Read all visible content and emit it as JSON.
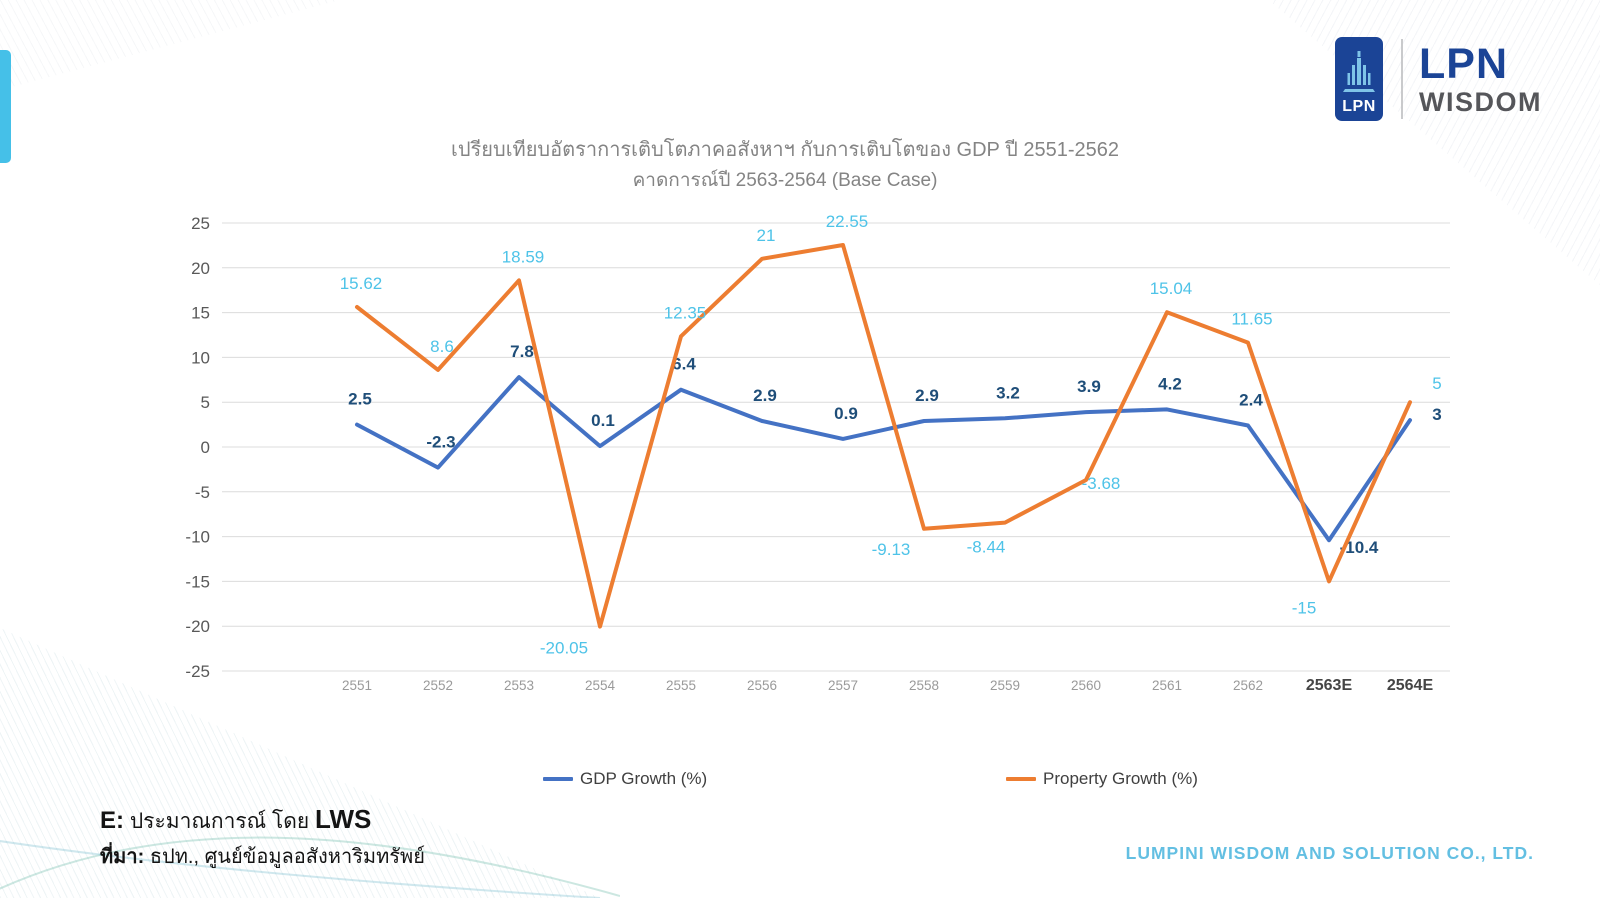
{
  "logo": {
    "badge_text": "LPN",
    "brand_line1": "LPN",
    "brand_line2": "WISDOM"
  },
  "footnotes": {
    "estimate_prefix": "E:",
    "estimate_text": "ประมาณการณ์ โดย",
    "estimate_by": "LWS",
    "source_prefix": "ที่มา:",
    "source_text": "ธปท., ศูนย์ข้อมูลอสังหาริมทรัพย์"
  },
  "footer": {
    "company": "LUMPINI WISDOM AND SOLUTION CO., LTD."
  },
  "colors": {
    "gdp_line": "#4472C4",
    "property_line": "#ED7D31",
    "gdp_label": "#1F4E79",
    "property_label": "#4EC3E8",
    "grid": "#DCDCDC",
    "y_tick": "#595959",
    "x_tick": "#9A9A9A",
    "x_tick_estimate": "#454545",
    "accent_bar": "#45C0E8",
    "footer_text": "#63BFE2",
    "logo_blue": "#1B4496",
    "logo_tower": "#4FA8D8"
  },
  "chart_data": {
    "type": "line",
    "title": "เปรียบเทียบอัตราการเติบโตภาคอสังหาฯ กับการเติบโตของ GDP ปี 2551-2562",
    "subtitle": "คาดการณ์ปี 2563-2564 (Base Case)",
    "categories": [
      "2551",
      "2552",
      "2553",
      "2554",
      "2555",
      "2556",
      "2557",
      "2558",
      "2559",
      "2560",
      "2561",
      "2562",
      "2563E",
      "2564E"
    ],
    "series": [
      {
        "name": "GDP Growth (%)",
        "color_key": "gdp_line",
        "label_color_key": "gdp_label",
        "values": [
          2.5,
          -2.3,
          7.8,
          0.1,
          6.4,
          2.9,
          0.9,
          2.9,
          3.2,
          3.9,
          4.2,
          2.4,
          -10.4,
          3
        ]
      },
      {
        "name": "Property Growth (%)",
        "color_key": "property_line",
        "label_color_key": "property_label",
        "values": [
          15.62,
          8.6,
          18.59,
          -20.05,
          12.35,
          21,
          22.55,
          -9.13,
          -8.44,
          -3.68,
          15.04,
          11.65,
          -15,
          5
        ]
      }
    ],
    "ylim": [
      -25,
      25
    ],
    "yticks": [
      25,
      20,
      15,
      10,
      5,
      0,
      -5,
      -10,
      -15,
      -20,
      -25
    ],
    "grid": true,
    "legend_position": "bottom"
  }
}
